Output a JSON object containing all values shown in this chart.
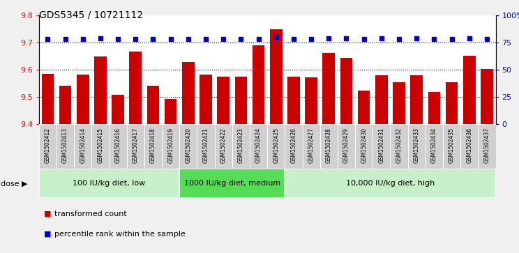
{
  "title": "GDS5345 / 10721112",
  "samples": [
    "GSM1502412",
    "GSM1502413",
    "GSM1502414",
    "GSM1502415",
    "GSM1502416",
    "GSM1502417",
    "GSM1502418",
    "GSM1502419",
    "GSM1502420",
    "GSM1502421",
    "GSM1502422",
    "GSM1502423",
    "GSM1502424",
    "GSM1502425",
    "GSM1502426",
    "GSM1502427",
    "GSM1502428",
    "GSM1502429",
    "GSM1502430",
    "GSM1502431",
    "GSM1502432",
    "GSM1502433",
    "GSM1502434",
    "GSM1502435",
    "GSM1502436",
    "GSM1502437"
  ],
  "bar_values": [
    9.585,
    9.54,
    9.582,
    9.648,
    9.507,
    9.665,
    9.54,
    9.493,
    9.628,
    9.582,
    9.573,
    9.575,
    9.688,
    9.748,
    9.575,
    9.572,
    9.66,
    9.642,
    9.523,
    9.578,
    9.553,
    9.578,
    9.518,
    9.553,
    9.652,
    9.603
  ],
  "percentile_values": [
    78,
    78,
    78,
    79,
    78,
    78,
    78,
    78,
    78,
    78,
    78,
    78,
    78,
    80,
    78,
    78,
    79,
    79,
    78,
    79,
    78,
    79,
    78,
    78,
    79,
    78
  ],
  "bar_color": "#cc0000",
  "dot_color": "#0000cc",
  "ylim_left": [
    9.4,
    9.8
  ],
  "ylim_right": [
    0,
    100
  ],
  "yticks_left": [
    9.4,
    9.5,
    9.6,
    9.7,
    9.8
  ],
  "yticks_right": [
    0,
    25,
    50,
    75,
    100
  ],
  "ytick_labels_right": [
    "0",
    "25",
    "50",
    "75",
    "100%"
  ],
  "gridlines": [
    9.5,
    9.6,
    9.7
  ],
  "groups": [
    {
      "label": "100 IU/kg diet, low",
      "start": 0,
      "end": 8
    },
    {
      "label": "1000 IU/kg diet, medium",
      "start": 8,
      "end": 14
    },
    {
      "label": "10,000 IU/kg diet, high",
      "start": 14,
      "end": 26
    }
  ],
  "group_colors": [
    "#c8f0c8",
    "#55dd55",
    "#c8f0c8"
  ],
  "dose_label": "dose",
  "legend_bar_label": "transformed count",
  "legend_dot_label": "percentile rank within the sample",
  "fig_bg": "#f0f0f0",
  "plot_bg": "#ffffff",
  "xtick_bg": "#d0d0d0",
  "title_fontsize": 10,
  "bar_fontsize": 5.5,
  "group_fontsize": 8,
  "legend_fontsize": 8
}
